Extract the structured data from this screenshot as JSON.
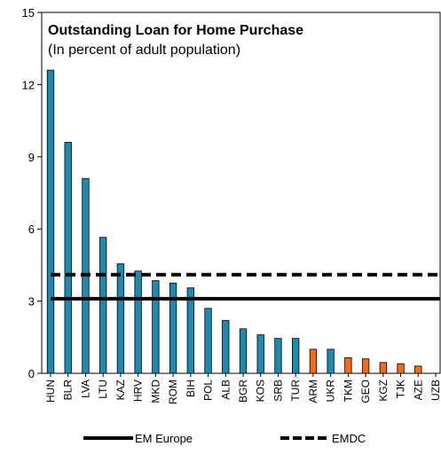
{
  "chart_data": {
    "type": "bar",
    "title": "Outstanding Loan for Home Purchase",
    "subtitle": "(In percent of adult population)",
    "xlabel": "",
    "ylabel": "",
    "ylim": [
      0,
      15
    ],
    "yticks": [
      0,
      3,
      6,
      9,
      12,
      15
    ],
    "categories": [
      "HUN",
      "BLR",
      "LVA",
      "LTU",
      "KAZ",
      "HRV",
      "MKD",
      "ROM",
      "BIH",
      "POL",
      "ALB",
      "BGR",
      "KOS",
      "SRB",
      "TUR",
      "ARM",
      "UKR",
      "TKM",
      "GEO",
      "KGZ",
      "TJK",
      "AZE",
      "UZB"
    ],
    "values": [
      12.6,
      9.6,
      8.1,
      5.65,
      4.55,
      4.25,
      3.85,
      3.75,
      3.55,
      2.7,
      2.2,
      1.85,
      1.6,
      1.45,
      1.45,
      1.0,
      1.0,
      0.65,
      0.6,
      0.45,
      0.4,
      0.3,
      0
    ],
    "bar_colors": [
      "#1f8ab0",
      "#1f8ab0",
      "#1f8ab0",
      "#1f8ab0",
      "#1f8ab0",
      "#1f8ab0",
      "#1f8ab0",
      "#1f8ab0",
      "#1f8ab0",
      "#1f8ab0",
      "#1f8ab0",
      "#1f8ab0",
      "#1f8ab0",
      "#1f8ab0",
      "#1f8ab0",
      "#f26b1d",
      "#1f8ab0",
      "#f26b1d",
      "#f26b1d",
      "#f26b1d",
      "#f26b1d",
      "#f26b1d",
      "#f26b1d"
    ],
    "reference_lines": [
      {
        "name": "EM Europe",
        "value": 3.1,
        "style": "solid",
        "color": "#000000"
      },
      {
        "name": "EMDC",
        "value": 4.1,
        "style": "dashed",
        "color": "#000000"
      }
    ],
    "legend_position": "bottom",
    "grid": false
  }
}
